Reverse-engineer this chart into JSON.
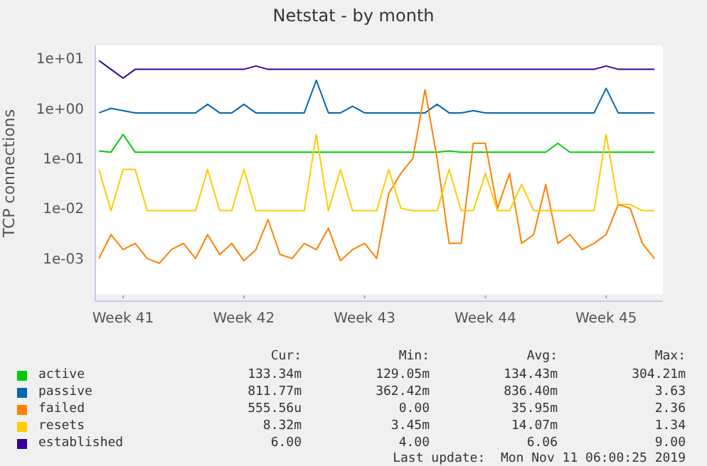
{
  "chart_data": {
    "type": "line",
    "title": "Netstat - by month",
    "ylabel": "TCP connections",
    "log": "y",
    "grid": true,
    "legend": "bottom",
    "marker": "none",
    "line_style": "solid",
    "categories": [
      null,
      null,
      "Week 41",
      null,
      null,
      null,
      null,
      null,
      null,
      null,
      null,
      null,
      "Week 42",
      null,
      null,
      null,
      null,
      null,
      null,
      null,
      null,
      null,
      "Week 43",
      null,
      null,
      null,
      null,
      null,
      null,
      null,
      null,
      null,
      "Week 44",
      null,
      null,
      null,
      null,
      null,
      null,
      null,
      null,
      null,
      "Week 45",
      null,
      null,
      null,
      null
    ],
    "ylim": [
      0.00014,
      18
    ],
    "yticks": [
      {
        "value": 0.001,
        "label": "1e-03"
      },
      {
        "value": 0.01,
        "label": "1e-02"
      },
      {
        "value": 0.1,
        "label": "1e-01"
      },
      {
        "value": 1,
        "label": "1e+00"
      },
      {
        "value": 10,
        "label": "1e+01"
      }
    ],
    "series": [
      {
        "name": "active",
        "color": "#00cc00",
        "values": [
          0.14,
          0.133,
          0.3,
          0.133,
          0.133,
          0.133,
          0.133,
          0.133,
          0.133,
          0.133,
          0.133,
          0.133,
          0.133,
          0.133,
          0.133,
          0.133,
          0.133,
          0.133,
          0.133,
          0.133,
          0.133,
          0.133,
          0.133,
          0.133,
          0.133,
          0.133,
          0.133,
          0.133,
          0.133,
          0.14,
          0.133,
          0.133,
          0.133,
          0.133,
          0.133,
          0.133,
          0.133,
          0.133,
          0.2,
          0.133,
          0.133,
          0.133,
          0.133,
          0.133,
          0.133,
          0.133,
          0.133
        ]
      },
      {
        "name": "passive",
        "color": "#0066b3",
        "values": [
          0.81,
          1.0,
          0.9,
          0.81,
          0.81,
          0.81,
          0.81,
          0.81,
          0.81,
          1.2,
          0.81,
          0.81,
          1.2,
          0.81,
          0.81,
          0.81,
          0.81,
          0.81,
          3.63,
          0.81,
          0.81,
          1.1,
          0.81,
          0.81,
          0.81,
          0.81,
          0.81,
          0.81,
          1.2,
          0.81,
          0.81,
          0.9,
          0.81,
          0.81,
          0.81,
          0.81,
          0.81,
          0.81,
          0.81,
          0.81,
          0.81,
          0.81,
          2.5,
          0.81,
          0.81,
          0.81,
          0.81
        ]
      },
      {
        "name": "failed",
        "color": "#ff8000",
        "values": [
          0.001,
          0.003,
          0.0015,
          0.002,
          0.001,
          0.0008,
          0.0015,
          0.002,
          0.001,
          0.003,
          0.0012,
          0.002,
          0.0009,
          0.0015,
          0.006,
          0.0012,
          0.001,
          0.002,
          0.0015,
          0.004,
          0.0009,
          0.0015,
          0.002,
          0.001,
          0.02,
          0.05,
          0.1,
          2.36,
          0.1,
          0.002,
          0.002,
          0.2,
          0.2,
          0.01,
          0.05,
          0.002,
          0.003,
          0.03,
          0.002,
          0.003,
          0.0015,
          0.002,
          0.003,
          0.012,
          0.01,
          0.002,
          0.001
        ]
      },
      {
        "name": "resets",
        "color": "#ffcc00",
        "values": [
          0.06,
          0.009,
          0.06,
          0.06,
          0.009,
          0.009,
          0.009,
          0.009,
          0.009,
          0.06,
          0.009,
          0.009,
          0.06,
          0.009,
          0.009,
          0.009,
          0.009,
          0.009,
          0.3,
          0.009,
          0.06,
          0.009,
          0.009,
          0.009,
          0.06,
          0.01,
          0.009,
          0.009,
          0.009,
          0.06,
          0.009,
          0.009,
          0.05,
          0.009,
          0.009,
          0.03,
          0.009,
          0.009,
          0.009,
          0.009,
          0.009,
          0.009,
          0.3,
          0.012,
          0.012,
          0.009,
          0.009
        ]
      },
      {
        "name": "established",
        "color": "#330099",
        "values": [
          9,
          6,
          4,
          6,
          6,
          6,
          6,
          6,
          6,
          6,
          6,
          6,
          6,
          7,
          6,
          6,
          6,
          6,
          6,
          6,
          6,
          6,
          6,
          6,
          6,
          6,
          6,
          6,
          6,
          6,
          6,
          6,
          6,
          6,
          6,
          6,
          6,
          6,
          6,
          6,
          6,
          6,
          7,
          6,
          6,
          6,
          6
        ]
      }
    ],
    "annotations": [
      "Cur:",
      "Min:",
      "Avg:",
      "Max:",
      "133.34m",
      "129.05m",
      "134.43m",
      "304.21m",
      "811.77m",
      "362.42m",
      "836.40m",
      "3.63",
      "555.56u",
      "0.00",
      "35.95m",
      "2.36",
      "8.32m",
      "3.45m",
      "14.07m",
      "1.34",
      "6.00",
      "4.00",
      "6.06",
      "9.00",
      "Last update:  Mon Nov 11 06:00:25 2019"
    ]
  }
}
